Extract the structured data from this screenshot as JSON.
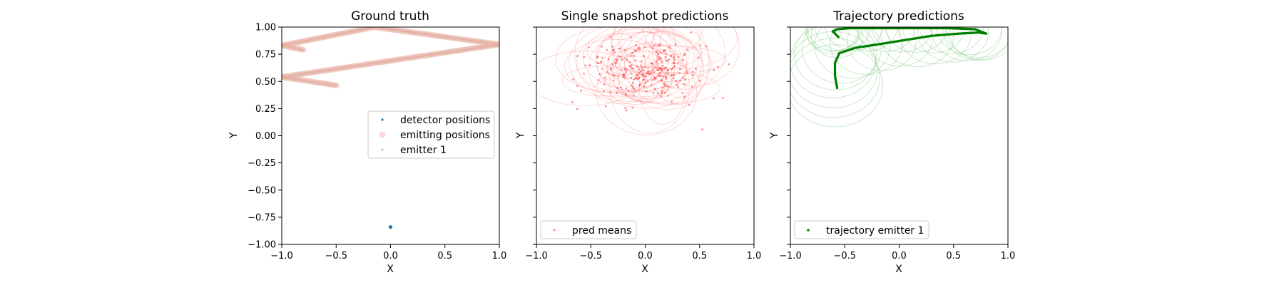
{
  "chart_data": [
    {
      "type": "scatter",
      "title": "Ground truth",
      "xlabel": "X",
      "ylabel": "Y",
      "xlim": [
        -1,
        1
      ],
      "ylim": [
        -1,
        1
      ],
      "xticks": [
        "−1.0",
        "−0.5",
        "0.0",
        "0.5",
        "1.0"
      ],
      "yticks": [
        "1.00",
        "0.75",
        "0.50",
        "0.25",
        "0.00",
        "−0.25",
        "−0.50",
        "−0.75",
        "−1.00"
      ],
      "legend_position": "center-right",
      "legend": [
        "detector positions",
        "emitting positions",
        "emitter 1"
      ],
      "detector_position": {
        "x": 0.0,
        "y": -0.84,
        "color": "#1f77b4"
      },
      "emitter_path": [
        [
          -0.8,
          0.79
        ],
        [
          -1.0,
          0.83
        ],
        [
          -0.15,
          1.0
        ],
        [
          1.0,
          0.84
        ],
        [
          -1.0,
          0.54
        ],
        [
          -0.48,
          0.46
        ]
      ],
      "emitter_color": "#e8b4a6",
      "marker_color": "#c8a090",
      "grid": false
    },
    {
      "type": "scatter",
      "title": "Single snapshot predictions",
      "xlim": [
        -1,
        1
      ],
      "ylim": [
        -1,
        1
      ],
      "xticks": [
        "−1.0",
        "−0.5",
        "0.0",
        "0.5",
        "1.0"
      ],
      "xlabel": "X",
      "ylabel": "Y",
      "legend_position": "lower-left",
      "legend": [
        "pred means"
      ],
      "mean_center": {
        "x": 0.0,
        "y": 0.62
      },
      "mean_spread": {
        "x": 0.25,
        "y": 0.12
      },
      "color": "#ff4040",
      "grid": false
    },
    {
      "type": "scatter",
      "title": "Trajectory predictions",
      "xlim": [
        -1,
        1
      ],
      "ylim": [
        -1,
        1
      ],
      "xticks": [
        "−1.0",
        "−0.5",
        "0.0",
        "0.5",
        "1.0"
      ],
      "xlabel": "X",
      "ylabel": "Y",
      "legend_position": "lower-left",
      "legend": [
        "trajectory emitter 1"
      ],
      "trajectory": [
        [
          -0.57,
          0.44
        ],
        [
          -0.59,
          0.55
        ],
        [
          -0.59,
          0.67
        ],
        [
          -0.55,
          0.76
        ],
        [
          -0.4,
          0.81
        ],
        [
          -0.2,
          0.84
        ],
        [
          0.05,
          0.88
        ],
        [
          0.3,
          0.92
        ],
        [
          0.55,
          0.94
        ],
        [
          0.73,
          0.95
        ],
        [
          0.8,
          0.94
        ],
        [
          0.7,
          0.98
        ],
        [
          0.45,
          0.99
        ],
        [
          0.2,
          0.99
        ],
        [
          0.0,
          0.99
        ],
        [
          -0.25,
          0.99
        ],
        [
          -0.45,
          0.99
        ],
        [
          -0.57,
          0.98
        ],
        [
          -0.61,
          0.96
        ],
        [
          -0.55,
          0.9
        ]
      ],
      "color": "#008000",
      "uncertainty_color": "#6abf6a",
      "grid": false
    }
  ]
}
